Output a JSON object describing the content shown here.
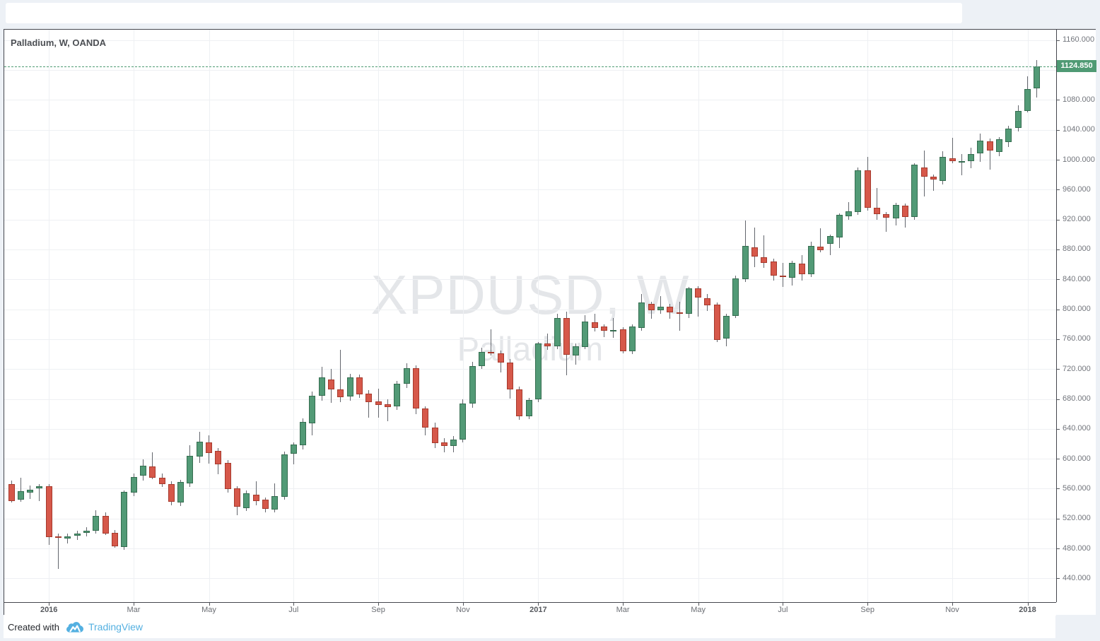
{
  "chart": {
    "title": "Palladium, W, OANDA",
    "watermark_line1": "XPDUSD, W",
    "watermark_line2": "Palladium",
    "last_price_label": "1124.850",
    "footer": {
      "created_with": "Created with",
      "brand": "TradingView"
    },
    "colors": {
      "up": "#529a76",
      "up_border": "#356d50",
      "down": "#d6584a",
      "down_border": "#a63a2d",
      "wick": "#63666d",
      "grid": "#eef0f3",
      "badge_bg": "#4f9a74",
      "price_line": "#4f9a74",
      "axis_text": "#72757c"
    },
    "y_axis": {
      "prices": [
        1160,
        1120,
        1080,
        1040,
        1000,
        960,
        920,
        880,
        840,
        800,
        760,
        720,
        680,
        640,
        600,
        560,
        520,
        480,
        440
      ],
      "decimals": 3
    },
    "x_axis": {
      "labels": [
        {
          "week": 4,
          "text": "2016",
          "year": true
        },
        {
          "week": 13,
          "text": "Mar"
        },
        {
          "week": 21,
          "text": "May"
        },
        {
          "week": 30,
          "text": "Jul"
        },
        {
          "week": 39,
          "text": "Sep"
        },
        {
          "week": 48,
          "text": "Nov"
        },
        {
          "week": 56,
          "text": "2017",
          "year": true
        },
        {
          "week": 65,
          "text": "Mar"
        },
        {
          "week": 73,
          "text": "May"
        },
        {
          "week": 82,
          "text": "Jul"
        },
        {
          "week": 91,
          "text": "Sep"
        },
        {
          "week": 100,
          "text": "Nov"
        },
        {
          "week": 108,
          "text": "2018",
          "year": true
        }
      ]
    }
  },
  "chart_data": {
    "type": "candlestick",
    "symbol": "XPDUSD",
    "description": "Palladium",
    "interval": "W",
    "exchange": "OANDA",
    "title": "Palladium, W, OANDA",
    "first_week_start": "2015-12-07",
    "x_unit": "week",
    "last_price": 1124.85,
    "ylim": [
      408,
      1175
    ],
    "y_tick_step": 40,
    "grid": true,
    "ohlc_order": [
      "open",
      "high",
      "low",
      "close"
    ],
    "candles": [
      [
        566,
        571,
        541,
        543
      ],
      [
        545,
        575,
        542,
        557
      ],
      [
        555,
        564,
        546,
        559
      ],
      [
        560,
        566,
        543,
        563
      ],
      [
        563,
        566,
        485,
        495
      ],
      [
        496,
        500,
        453,
        494
      ],
      [
        493,
        500,
        487,
        496
      ],
      [
        497,
        504,
        491,
        500
      ],
      [
        501,
        508,
        496,
        504
      ],
      [
        504,
        531,
        500,
        524
      ],
      [
        524,
        528,
        498,
        500
      ],
      [
        501,
        505,
        481,
        483
      ],
      [
        482,
        558,
        478,
        556
      ],
      [
        555,
        580,
        550,
        576
      ],
      [
        577,
        599,
        571,
        591
      ],
      [
        590,
        609,
        573,
        575
      ],
      [
        575,
        580,
        562,
        566
      ],
      [
        566,
        570,
        538,
        542
      ],
      [
        541,
        572,
        537,
        569
      ],
      [
        567,
        618,
        562,
        604
      ],
      [
        603,
        636,
        594,
        623
      ],
      [
        622,
        631,
        593,
        608
      ],
      [
        611,
        614,
        579,
        593
      ],
      [
        594,
        598,
        555,
        559
      ],
      [
        560,
        563,
        524,
        536
      ],
      [
        534,
        558,
        530,
        554
      ],
      [
        552,
        570,
        538,
        543
      ],
      [
        545,
        548,
        528,
        533
      ],
      [
        532,
        567,
        528,
        550
      ],
      [
        549,
        610,
        545,
        606
      ],
      [
        607,
        622,
        592,
        619
      ],
      [
        618,
        654,
        612,
        649
      ],
      [
        647,
        690,
        631,
        684
      ],
      [
        684,
        723,
        678,
        709
      ],
      [
        706,
        720,
        675,
        693
      ],
      [
        693,
        746,
        676,
        682
      ],
      [
        683,
        714,
        678,
        709
      ],
      [
        709,
        713,
        681,
        686
      ],
      [
        687,
        692,
        655,
        676
      ],
      [
        677,
        694,
        655,
        672
      ],
      [
        673,
        680,
        650,
        669
      ],
      [
        670,
        704,
        665,
        700
      ],
      [
        700,
        728,
        695,
        721
      ],
      [
        721,
        725,
        660,
        667
      ],
      [
        667,
        670,
        631,
        642
      ],
      [
        642,
        648,
        614,
        621
      ],
      [
        622,
        628,
        609,
        617
      ],
      [
        617,
        630,
        609,
        626
      ],
      [
        626,
        680,
        622,
        674
      ],
      [
        674,
        730,
        668,
        724
      ],
      [
        724,
        749,
        720,
        743
      ],
      [
        743,
        773,
        738,
        741
      ],
      [
        741,
        745,
        715,
        729
      ],
      [
        729,
        733,
        680,
        693
      ],
      [
        693,
        697,
        652,
        657
      ],
      [
        657,
        681,
        653,
        679
      ],
      [
        679,
        756,
        676,
        754
      ],
      [
        754,
        767,
        746,
        750
      ],
      [
        750,
        794,
        747,
        788
      ],
      [
        788,
        797,
        712,
        739
      ],
      [
        738,
        754,
        726,
        750
      ],
      [
        750,
        792,
        747,
        784
      ],
      [
        783,
        794,
        770,
        775
      ],
      [
        777,
        780,
        763,
        771
      ],
      [
        771,
        788,
        762,
        772
      ],
      [
        773,
        776,
        741,
        744
      ],
      [
        744,
        780,
        740,
        777
      ],
      [
        775,
        820,
        771,
        809
      ],
      [
        807,
        810,
        787,
        799
      ],
      [
        799,
        818,
        794,
        803
      ],
      [
        803,
        807,
        787,
        796
      ],
      [
        796,
        810,
        771,
        794
      ],
      [
        794,
        830,
        788,
        828
      ],
      [
        828,
        831,
        790,
        816
      ],
      [
        815,
        820,
        798,
        805
      ],
      [
        806,
        809,
        756,
        759
      ],
      [
        761,
        794,
        750,
        791
      ],
      [
        791,
        845,
        788,
        841
      ],
      [
        840,
        919,
        836,
        885
      ],
      [
        883,
        909,
        856,
        870
      ],
      [
        870,
        899,
        855,
        862
      ],
      [
        864,
        868,
        838,
        845
      ],
      [
        845,
        862,
        830,
        843
      ],
      [
        842,
        865,
        832,
        862
      ],
      [
        861,
        872,
        838,
        847
      ],
      [
        847,
        890,
        843,
        885
      ],
      [
        884,
        908,
        876,
        879
      ],
      [
        887,
        900,
        872,
        898
      ],
      [
        896,
        928,
        882,
        926
      ],
      [
        924,
        943,
        920,
        931
      ],
      [
        930,
        990,
        926,
        986
      ],
      [
        986,
        1004,
        932,
        936
      ],
      [
        936,
        962,
        920,
        927
      ],
      [
        927,
        930,
        904,
        922
      ],
      [
        922,
        942,
        912,
        940
      ],
      [
        939,
        941,
        909,
        923
      ],
      [
        923,
        995,
        920,
        993
      ],
      [
        990,
        1012,
        951,
        977
      ],
      [
        977,
        980,
        958,
        973
      ],
      [
        972,
        1011,
        967,
        1004
      ],
      [
        1002,
        1029,
        995,
        998
      ],
      [
        998,
        1008,
        979,
        998
      ],
      [
        998,
        1016,
        989,
        1008
      ],
      [
        1009,
        1035,
        997,
        1026
      ],
      [
        1025,
        1028,
        987,
        1012
      ],
      [
        1010,
        1030,
        1005,
        1027
      ],
      [
        1024,
        1045,
        1017,
        1042
      ],
      [
        1042,
        1073,
        1038,
        1065
      ],
      [
        1065,
        1112,
        1063,
        1095
      ],
      [
        1095,
        1133,
        1083,
        1124.85
      ]
    ]
  }
}
